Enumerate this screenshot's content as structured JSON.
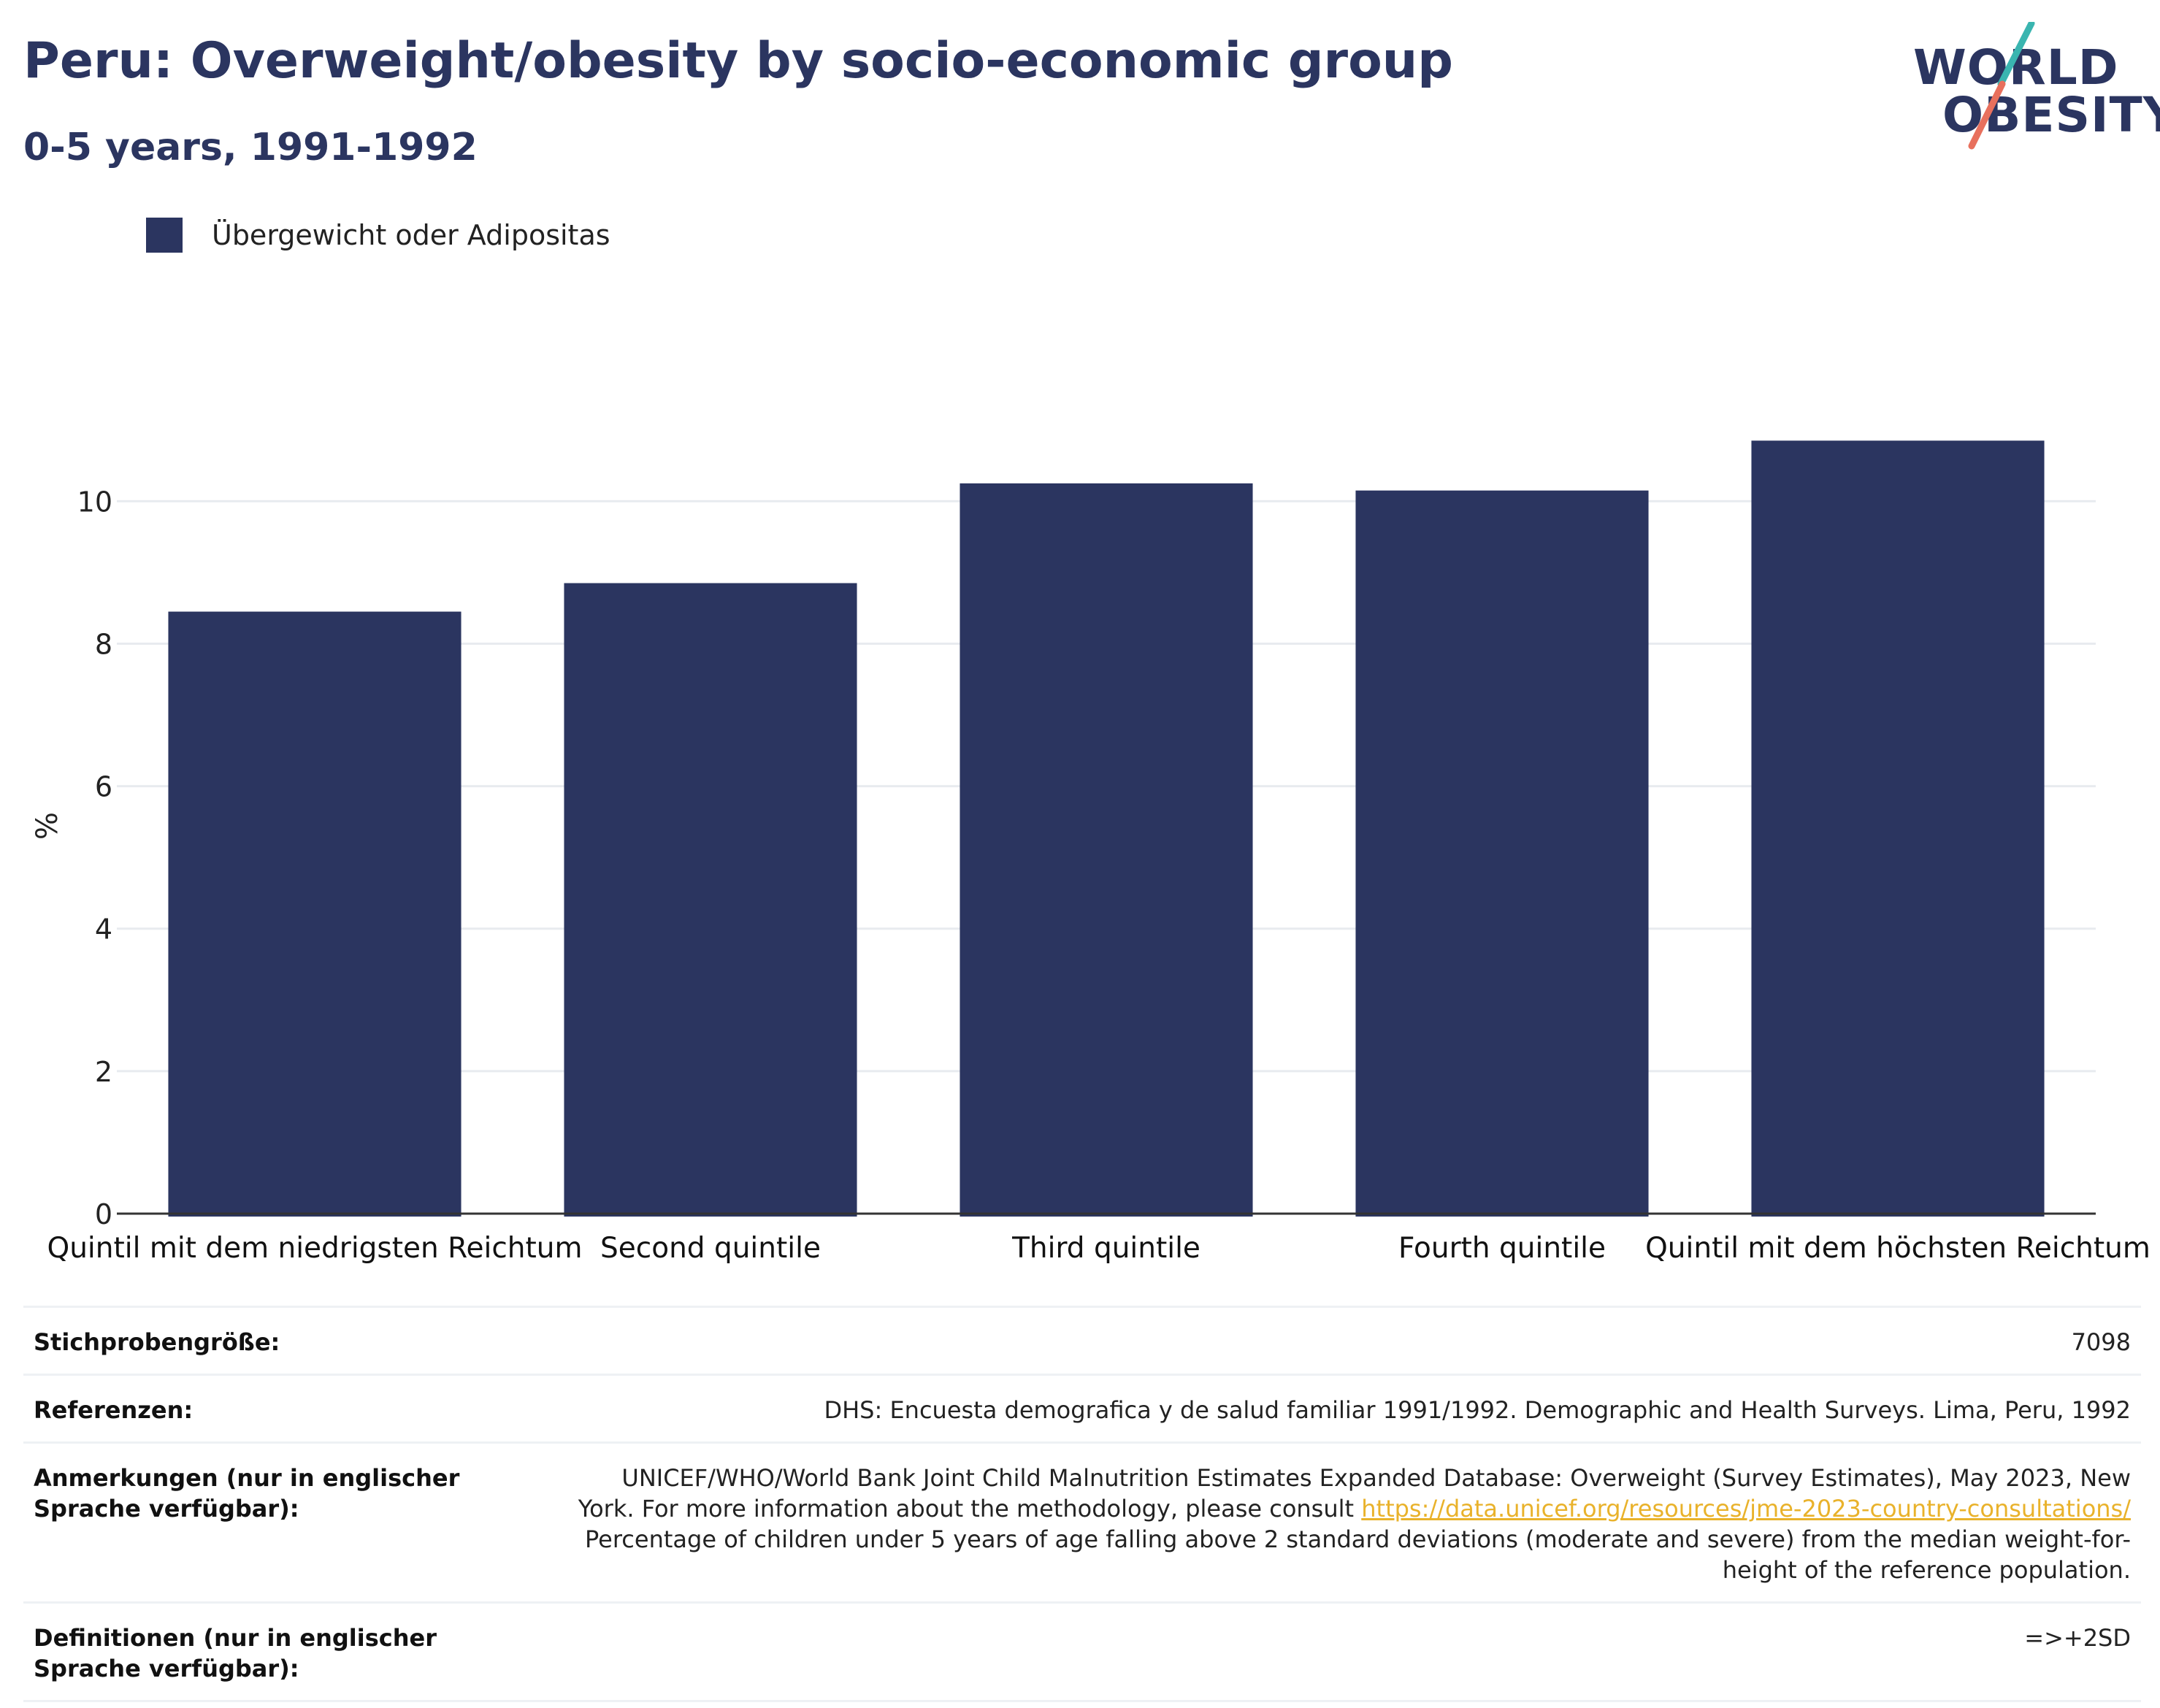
{
  "header": {
    "title": "Peru: Overweight/obesity by socio-economic group",
    "subtitle": "0-5 years, 1991-1992"
  },
  "logo": {
    "line1": "WORLD",
    "line2": "OBESITY"
  },
  "colors": {
    "bar": "#2b3560",
    "grid": "#e8ebef",
    "axis": "#333333",
    "link": "#e9b22b",
    "logo_slash_teal": "#3ab5b0",
    "logo_slash_coral": "#e8705d"
  },
  "chart_data": {
    "type": "bar",
    "categories": [
      "Quintil mit dem niedrigsten Reichtum",
      "Second quintile",
      "Third quintile",
      "Fourth quintile",
      "Quintil mit dem höchsten Reichtum"
    ],
    "series": [
      {
        "name": "Übergewicht oder Adipositas",
        "values": [
          8.45,
          8.85,
          10.25,
          10.15,
          10.85
        ]
      }
    ],
    "ylabel": "%",
    "xlabel": "",
    "ylim": [
      0,
      11.5
    ],
    "yticks": [
      0,
      2,
      4,
      6,
      8,
      10
    ],
    "grid": true,
    "legend_position": "top-left"
  },
  "meta": [
    {
      "key": "Stichprobengröße:",
      "value": "7098"
    },
    {
      "key": "Referenzen:",
      "value": "DHS: Encuesta demografica y de salud familiar 1991/1992. Demographic and Health Surveys. Lima, Peru, 1992"
    },
    {
      "key": "Anmerkungen (nur in englischer Sprache verfügbar):",
      "value_before": "UNICEF/WHO/World Bank Joint Child Malnutrition Estimates Expanded Database: Overweight (Survey Estimates), May 2023, New York. For more information about the methodology, please consult ",
      "link": "https://data.unicef.org/resources/jme-2023-country-consultations/",
      "value_after": " Percentage of children under 5 years of age falling above 2 standard deviations (moderate and severe) from the median weight-for-height of the reference population."
    },
    {
      "key": "Definitionen (nur in englischer Sprache verfügbar):",
      "value": "=>+2SD"
    }
  ]
}
